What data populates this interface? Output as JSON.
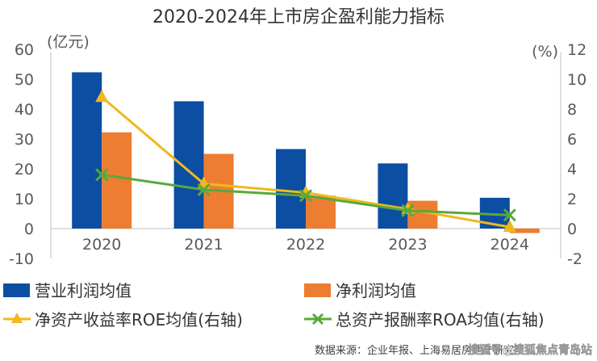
{
  "chart_data": {
    "type": "bar",
    "title": "2020-2024年上市房企盈利能力指标",
    "categories": [
      "2020",
      "2021",
      "2022",
      "2023",
      "2024"
    ],
    "left_axis": {
      "unit": "(亿元)",
      "ylim": [
        -10,
        60
      ],
      "ticks": [
        "-10",
        "0",
        "10",
        "20",
        "30",
        "40",
        "50",
        "60"
      ]
    },
    "right_axis": {
      "unit": "(%)",
      "ylim": [
        -2,
        12
      ],
      "ticks": [
        "-2",
        "0",
        "2",
        "4",
        "6",
        "8",
        "10",
        "12"
      ]
    },
    "series": [
      {
        "name": "营业利润均值",
        "kind": "bar",
        "axis": "left",
        "color": "#0b4ea2",
        "values": [
          52.3,
          42.6,
          26.6,
          21.8,
          10.3
        ]
      },
      {
        "name": "净利润均值",
        "kind": "bar",
        "axis": "left",
        "color": "#ed7d31",
        "values": [
          32.2,
          25.0,
          11.0,
          9.3,
          -1.5
        ]
      },
      {
        "name": "净资产收益率ROE均值(右轴)",
        "kind": "line",
        "axis": "right",
        "color": "#f0b81e",
        "marker": "triangle",
        "values": [
          8.8,
          3.0,
          2.4,
          1.3,
          0.1
        ]
      },
      {
        "name": "总资产报酬率ROA均值(右轴)",
        "kind": "line",
        "axis": "right",
        "color": "#58a93b",
        "marker": "x",
        "values": [
          3.6,
          2.6,
          2.2,
          1.2,
          0.9
        ]
      }
    ],
    "grid": false,
    "legend_position": "bottom"
  },
  "source": "数据来源：企业年报、上海易居房地产研究院",
  "watermark": "搜狐号@搜狐焦点青岛站"
}
